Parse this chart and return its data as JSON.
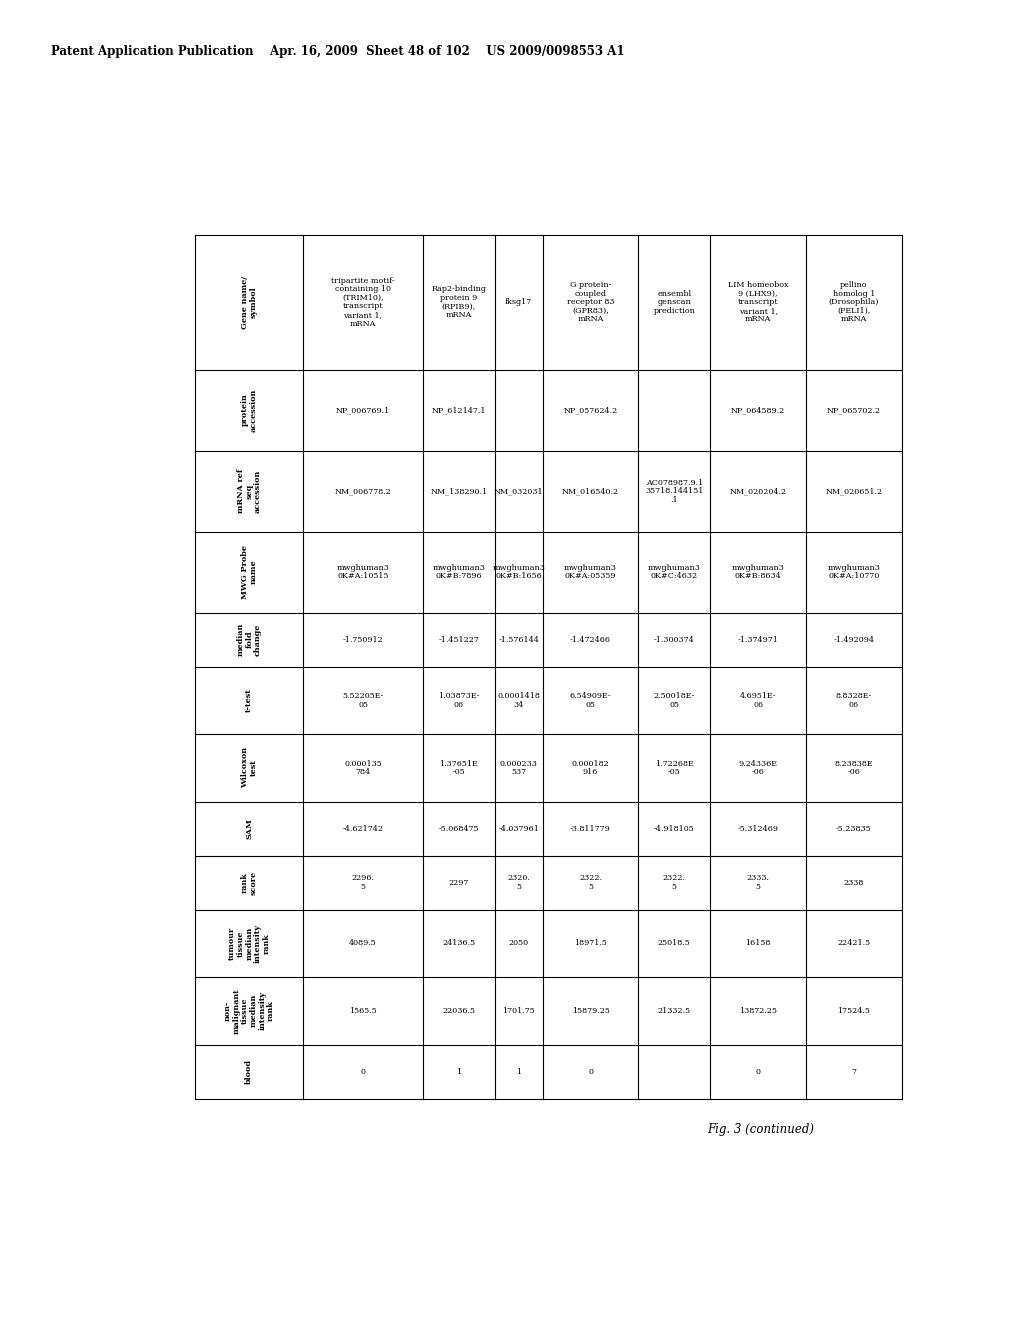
{
  "header_text": "Patent Application Publication    Apr. 16, 2009  Sheet 48 of 102    US 2009/0098553 A1",
  "fig_caption": "Fig. 3 (continued)",
  "row_headers": [
    "Gene name/\nsymbol",
    "protein\naccession",
    "mRNA ref\nseq\naccession",
    "MWG Probe\nname",
    "median\nfold\nchange",
    "t-test",
    "Wilcoxon\ntest",
    "SAM",
    "rank\nscore",
    "tumour\ntissue\nmedian\nintensity\nrank",
    "non-\nmalignant\ntissue\nmedian\nintensity\nrank",
    "blood"
  ],
  "data_cols": [
    [
      "tripartite motif-\ncontaining 10\n(TRIM10),\ntranscript\nvariant 1,\nmRNA",
      "NP_006769.1",
      "NM_006778.2",
      "mwghuman3\n0K#A:10515",
      "-1.750912",
      "5.52205E-\n05",
      "0.000135\n784",
      "-4.621742",
      "2296.\n5",
      "4089.5",
      "1565.5",
      "0"
    ],
    [
      "Rap2-binding\nprotein 9\n(RPIB9),\nmRNA",
      "NP_612147.1",
      "NM_138290.1",
      "mwghuman3\n0K#B:7896",
      "-1.451227",
      "1.03873E-\n06",
      "1.37651E\n-05",
      "-5.068475",
      "2297",
      "24136.5",
      "22036.5",
      "1"
    ],
    [
      "fksg17",
      "",
      "NM_032031",
      "mwghuman3\n0K#B:1656",
      "-1.576144",
      "0.0001418\n34",
      "0.000233\n537",
      "-4.037961",
      "2320.\n5",
      "2050",
      "1701.75",
      "1"
    ],
    [
      "G protein-\ncoupled\nreceptor 83\n(GPR83),\nmRNA",
      "NP_057624.2",
      "NM_016540.2",
      "mwghuman3\n0K#A:05359",
      "-1.472466",
      "6.54909E-\n05",
      "0.000182\n916",
      "-3.811779",
      "2322.\n5",
      "18971.5",
      "15879.25",
      "0"
    ],
    [
      "ensembl\ngenscan\nprediction",
      "",
      "AC078987.9.1\n35718.144151\n.1",
      "mwghuman3\n0K#C:4632",
      "-1.300374",
      "2.50018E-\n05",
      "1.72268E\n-05",
      "-4.918105",
      "2322.\n5",
      "25018.5",
      "21332.5",
      ""
    ],
    [
      "LIM homeobox\n9 (LHX9),\ntranscript\nvariant 1,\nmRNA",
      "NP_064589.2",
      "NM_020204.2",
      "mwghuman3\n0K#B:8634",
      "-1.374971",
      "4.6951E-\n06",
      "9.24336E\n-06",
      "-5.312469",
      "2333.\n5",
      "16158",
      "13872.25",
      "0"
    ],
    [
      "pellino\nhomolog 1\n(Drosophila)\n(PELI1),\nmRNA",
      "NP_065702.2",
      "NM_020651.2",
      "mwghuman3\n0K#A:10770",
      "-1.492094",
      "8.8328E-\n06",
      "8.23838E\n-06",
      "-5.23835",
      "2338",
      "22421.5",
      "17524.5",
      "7"
    ]
  ],
  "row_heights_rel": [
    5,
    3,
    3,
    3,
    2,
    2.5,
    2.5,
    2,
    2,
    2.5,
    2.5,
    2
  ],
  "col_widths_rel": [
    5,
    3,
    2,
    4,
    3,
    4,
    4
  ]
}
